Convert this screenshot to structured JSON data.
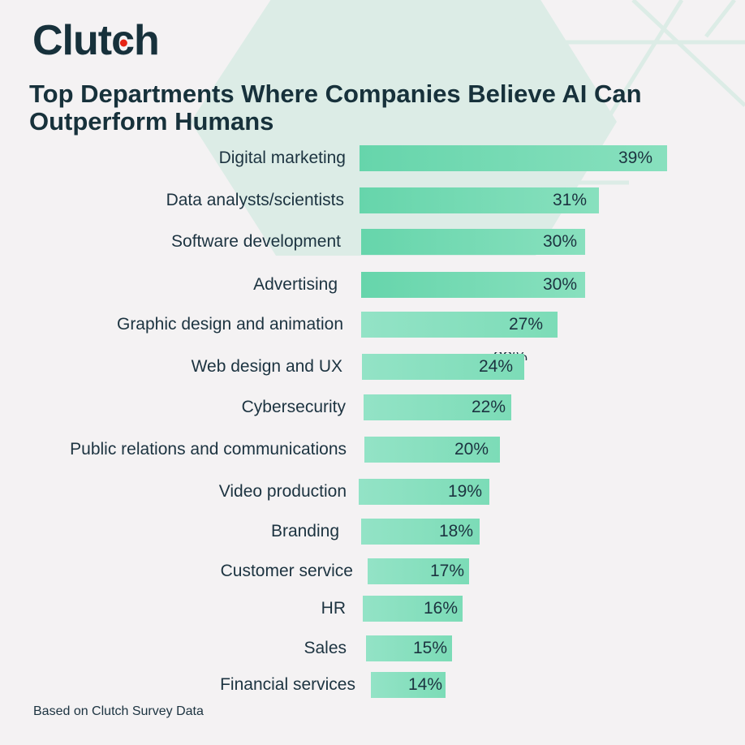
{
  "brand": {
    "logo_text_pre": "Clut",
    "logo_text_c": "c",
    "logo_text_post": "h",
    "accent_dot_color": "#e62415"
  },
  "header": {
    "title": "Top Departments Where Companies Believe AI Can Outperform Humans"
  },
  "footer": {
    "source": "Based on Clutch Survey Data"
  },
  "rows": [
    {
      "label": "Digital marketing",
      "value_label": "39%"
    },
    {
      "label": "Data analysts/scientists",
      "value_label": "31%"
    },
    {
      "label": "Software development",
      "value_label": "30%"
    },
    {
      "label": "Advertising",
      "value_label": "30%"
    },
    {
      "label": "Graphic design and animation",
      "value_label": "27%"
    },
    {
      "label": "Web design and UX",
      "value_label": "24%"
    },
    {
      "label": "Cybersecurity",
      "value_label": "22%"
    },
    {
      "label": "Public relations and communications",
      "value_label": "20%"
    },
    {
      "label": "Video production",
      "value_label": "19%"
    },
    {
      "label": "Branding",
      "value_label": "18%"
    },
    {
      "label": "Customer service",
      "value_label": "17%"
    },
    {
      "label": "HR",
      "value_label": "16%"
    },
    {
      "label": "Sales",
      "value_label": "15%"
    },
    {
      "label": "Financial services",
      "value_label": "14%"
    }
  ],
  "ghost_label": "30%",
  "colors": {
    "bar_primary": "#66d5ab",
    "bar_light": "#93e3c6",
    "text": "#1c3340",
    "background": "#f4f2f3",
    "hexagon": "#dcece6"
  },
  "chart_data": {
    "type": "bar",
    "orientation": "horizontal",
    "title": "Top Departments Where Companies Believe AI Can Outperform Humans",
    "categories": [
      "Digital marketing",
      "Data analysts/scientists",
      "Software development",
      "Advertising",
      "Graphic design and animation",
      "Web design and UX",
      "Cybersecurity",
      "Public relations and communications",
      "Video production",
      "Branding",
      "Customer service",
      "HR",
      "Sales",
      "Financial services"
    ],
    "values": [
      39,
      31,
      30,
      30,
      27,
      24,
      22,
      20,
      19,
      18,
      17,
      16,
      15,
      14
    ],
    "unit": "%",
    "xlabel": "",
    "ylabel": "",
    "xlim": [
      0,
      40
    ],
    "grid": false,
    "legend": null,
    "data_labels": true,
    "source_note": "Based on Clutch Survey Data"
  }
}
